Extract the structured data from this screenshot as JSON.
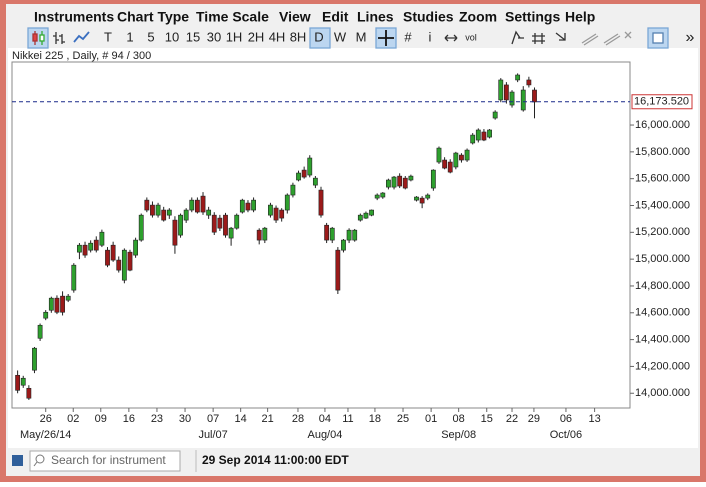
{
  "menu": [
    "Instruments",
    "Chart Type",
    "Time Scale",
    "View",
    "Edit",
    "Lines",
    "Studies",
    "Zoom",
    "Settings",
    "Help"
  ],
  "toolbar": [
    "T",
    "1",
    "5",
    "10",
    "15",
    "30",
    "1H",
    "2H",
    "4H",
    "8H",
    "D",
    "W",
    "M",
    "#",
    "i",
    "vol",
    "»"
  ],
  "search_placeholder": "Search for instrument",
  "status": "29 Sep 2014 11:00:00 EDT",
  "chart_data": {
    "type": "candlestick",
    "title": "Nikkei 225 , Daily, # 94 / 300",
    "up_color": "#2ea02e",
    "down_color": "#9b1a1a",
    "open": [
      14134,
      14060,
      14037,
      14172,
      14410,
      14560,
      14619,
      14709,
      14724,
      14694,
      14769,
      15052,
      15104,
      15067,
      15142,
      15104,
      15067,
      15104,
      14993,
      14843,
      15052,
      15030,
      15142,
      15440,
      15403,
      15328,
      15366,
      15328,
      15291,
      15179,
      15291,
      15366,
      15440,
      15470,
      15328,
      15328,
      15306,
      15328,
      15157,
      15231,
      15351,
      15418,
      15366,
      15216,
      15142,
      15328,
      15381,
      15366,
      15366,
      15478,
      15590,
      15664,
      15627,
      15552,
      15515,
      15253,
      15142,
      15067,
      15067,
      15142,
      15142,
      15291,
      15306,
      15328,
      15455,
      15463,
      15537,
      15537,
      15619,
      15604,
      15590,
      15440,
      15455,
      15455,
      15530,
      15724,
      15739,
      15724,
      15687,
      15776,
      15739,
      15866,
      15888,
      15948,
      15910,
      16052,
      16187,
      16299,
      16149,
      16336,
      16112,
      16336,
      16261
    ],
    "high": [
      14170,
      14130,
      14060,
      14345,
      14520,
      14620,
      14720,
      14730,
      14760,
      14740,
      14970,
      15120,
      15130,
      15140,
      15170,
      15220,
      15090,
      15130,
      15020,
      15080,
      15070,
      15160,
      15340,
      15460,
      15430,
      15420,
      15390,
      15380,
      15320,
      15340,
      15380,
      15460,
      15460,
      15500,
      15390,
      15350,
      15330,
      15345,
      15240,
      15340,
      15450,
      15440,
      15460,
      15230,
      15240,
      15420,
      15400,
      15380,
      15490,
      15570,
      15660,
      15690,
      15775,
      15620,
      15540,
      15270,
      15240,
      15090,
      15150,
      15230,
      15225,
      15340,
      15355,
      15370,
      15490,
      15500,
      15600,
      15620,
      15640,
      15620,
      15630,
      15470,
      15470,
      15490,
      15670,
      15840,
      15760,
      15745,
      15800,
      15790,
      15825,
      15940,
      15975,
      15970,
      15970,
      16110,
      16350,
      16320,
      16260,
      16385,
      16290,
      16360,
      16280
    ],
    "low": [
      14000,
      14040,
      13950,
      14150,
      14390,
      14545,
      14600,
      14590,
      14580,
      14680,
      14750,
      15000,
      15010,
      15050,
      15050,
      15090,
      14940,
      14980,
      14900,
      14820,
      14910,
      15010,
      15130,
      15350,
      15310,
      15310,
      15280,
      15300,
      15040,
      15160,
      15270,
      15350,
      15340,
      15330,
      15300,
      15180,
      15210,
      15160,
      15100,
      15220,
      15340,
      15350,
      15350,
      15110,
      15120,
      15310,
      15270,
      15280,
      15340,
      15460,
      15580,
      15600,
      15610,
      15530,
      15310,
      15120,
      15120,
      14740,
      15050,
      15120,
      15130,
      15280,
      15300,
      15320,
      15440,
      15450,
      15520,
      15520,
      15530,
      15520,
      15580,
      15430,
      15380,
      15440,
      15510,
      15710,
      15670,
      15640,
      15670,
      15720,
      15725,
      15855,
      15870,
      15880,
      15900,
      16040,
      16170,
      16160,
      16130,
      16320,
      16100,
      16280,
      16050
    ],
    "close": [
      14022,
      14112,
      13963,
      14336,
      14507,
      14604,
      14709,
      14604,
      14604,
      14724,
      14955,
      15104,
      15030,
      15119,
      15067,
      15201,
      14955,
      14993,
      14918,
      15067,
      14918,
      15142,
      15328,
      15366,
      15328,
      15403,
      15291,
      15366,
      15104,
      15328,
      15366,
      15440,
      15351,
      15351,
      15366,
      15201,
      15231,
      15179,
      15231,
      15328,
      15440,
      15366,
      15440,
      15142,
      15231,
      15403,
      15291,
      15306,
      15478,
      15552,
      15642,
      15612,
      15754,
      15604,
      15328,
      15142,
      15231,
      14769,
      15142,
      15216,
      15216,
      15328,
      15343,
      15366,
      15478,
      15493,
      15590,
      15612,
      15545,
      15530,
      15619,
      15463,
      15418,
      15478,
      15664,
      15828,
      15679,
      15649,
      15791,
      15739,
      15813,
      15925,
      15963,
      15888,
      15963,
      16097,
      16336,
      16187,
      16246,
      16373,
      16261,
      16299,
      16172
    ],
    "last_price": {
      "value": 16173.52,
      "label": "16,173.520"
    },
    "ylim": [
      13890,
      16470
    ],
    "yticks": [
      {
        "value": 14000,
        "label": "14,000.000"
      },
      {
        "value": 14200,
        "label": "14,200.000"
      },
      {
        "value": 14400,
        "label": "14,400.000"
      },
      {
        "value": 14600,
        "label": "14,600.000"
      },
      {
        "value": 14800,
        "label": "14,800.000"
      },
      {
        "value": 15000,
        "label": "15,000.000"
      },
      {
        "value": 15200,
        "label": "15,200.000"
      },
      {
        "value": 15400,
        "label": "15,400.000"
      },
      {
        "value": 15600,
        "label": "15,600.000"
      },
      {
        "value": 15800,
        "label": "15,800.000"
      },
      {
        "value": 16000,
        "label": "16,000.000"
      }
    ],
    "xlim": [
      -1,
      109
    ],
    "xticks": [
      {
        "value": 5,
        "label": "26"
      },
      {
        "value": 9.9,
        "label": "02"
      },
      {
        "value": 14.8,
        "label": "09"
      },
      {
        "value": 19.8,
        "label": "16"
      },
      {
        "value": 24.8,
        "label": "23"
      },
      {
        "value": 29.8,
        "label": "30"
      },
      {
        "value": 34.8,
        "label": "07"
      },
      {
        "value": 39.7,
        "label": "14"
      },
      {
        "value": 44.5,
        "label": "21"
      },
      {
        "value": 49.9,
        "label": "28"
      },
      {
        "value": 54.7,
        "label": "04"
      },
      {
        "value": 58.8,
        "label": "11"
      },
      {
        "value": 63.6,
        "label": "18"
      },
      {
        "value": 68.6,
        "label": "25"
      },
      {
        "value": 73.6,
        "label": "01"
      },
      {
        "value": 78.5,
        "label": "08"
      },
      {
        "value": 83.5,
        "label": "15"
      },
      {
        "value": 88,
        "label": "22"
      },
      {
        "value": 91.9,
        "label": "29"
      },
      {
        "value": 97.6,
        "label": "06"
      },
      {
        "value": 102.7,
        "label": "13"
      }
    ],
    "month_ticks": [
      {
        "value": 5,
        "label": "May/26/14"
      },
      {
        "value": 34.8,
        "label": "Jul/07"
      },
      {
        "value": 54.7,
        "label": "Aug/04"
      },
      {
        "value": 78.5,
        "label": "Sep/08"
      },
      {
        "value": 97.6,
        "label": "Oct/06"
      }
    ]
  }
}
